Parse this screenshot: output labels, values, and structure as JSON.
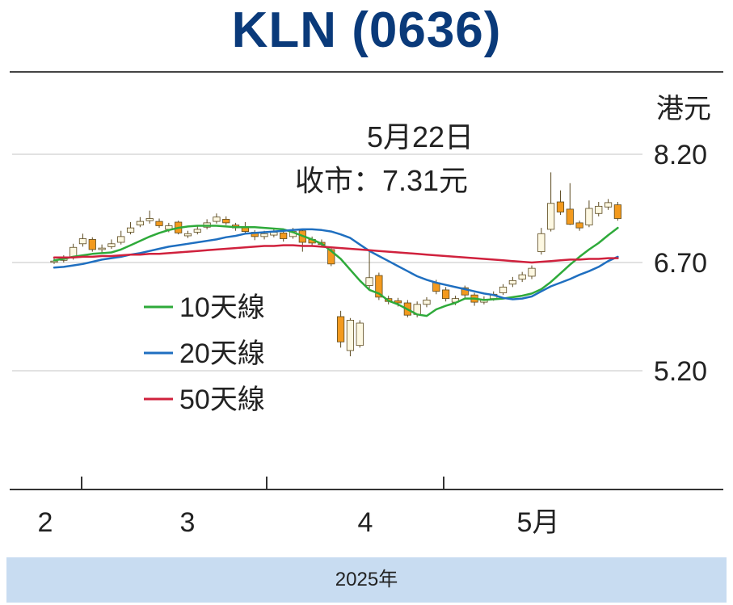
{
  "title": "KLN (0636)",
  "unit": "港元",
  "annotation": {
    "date": "5月22日",
    "close": "收市：7.31元"
  },
  "year": "2025年",
  "colors": {
    "title": "#0a3a7a",
    "ma10": "#2eaa3a",
    "ma20": "#1f6fc0",
    "ma50": "#d0213d",
    "down_candle": "#f39a1e",
    "up_candle": "#fdf8e2",
    "candle_edge": "#5c4a20",
    "band": "#c8dcf1"
  },
  "chart_data": {
    "type": "candlestick",
    "y_unit": "港元",
    "y_ticks": [
      {
        "value": 8.2,
        "label": "8.20"
      },
      {
        "value": 6.7,
        "label": "6.70"
      },
      {
        "value": 5.2,
        "label": "5.20"
      }
    ],
    "ylim": [
      3.5,
      9.4
    ],
    "x_ticks": [
      "2",
      "3",
      "4",
      "5月"
    ],
    "legend": [
      "10天線",
      "20天線",
      "50天線"
    ],
    "candles": [
      {
        "o": 6.72,
        "c": 6.72,
        "h": 6.76,
        "l": 6.68
      },
      {
        "o": 6.73,
        "c": 6.76,
        "h": 6.8,
        "l": 6.7
      },
      {
        "o": 6.78,
        "c": 6.91,
        "h": 6.96,
        "l": 6.74
      },
      {
        "o": 6.96,
        "c": 7.03,
        "h": 7.1,
        "l": 6.92
      },
      {
        "o": 7.02,
        "c": 6.88,
        "h": 7.05,
        "l": 6.85
      },
      {
        "o": 6.88,
        "c": 6.9,
        "h": 6.95,
        "l": 6.84
      },
      {
        "o": 6.92,
        "c": 6.96,
        "h": 7.02,
        "l": 6.89
      },
      {
        "o": 6.98,
        "c": 7.06,
        "h": 7.14,
        "l": 6.95
      },
      {
        "o": 7.12,
        "c": 7.18,
        "h": 7.26,
        "l": 7.09
      },
      {
        "o": 7.22,
        "c": 7.27,
        "h": 7.33,
        "l": 7.19
      },
      {
        "o": 7.28,
        "c": 7.31,
        "h": 7.42,
        "l": 7.24
      },
      {
        "o": 7.27,
        "c": 7.21,
        "h": 7.31,
        "l": 7.18
      },
      {
        "o": 7.16,
        "c": 7.21,
        "h": 7.25,
        "l": 7.12
      },
      {
        "o": 7.26,
        "c": 7.11,
        "h": 7.28,
        "l": 7.09
      },
      {
        "o": 7.07,
        "c": 7.1,
        "h": 7.14,
        "l": 7.04
      },
      {
        "o": 7.12,
        "c": 7.16,
        "h": 7.2,
        "l": 7.09
      },
      {
        "o": 7.19,
        "c": 7.25,
        "h": 7.3,
        "l": 7.16
      },
      {
        "o": 7.27,
        "c": 7.33,
        "h": 7.38,
        "l": 7.24
      },
      {
        "o": 7.3,
        "c": 7.25,
        "h": 7.34,
        "l": 7.22
      },
      {
        "o": 7.22,
        "c": 7.18,
        "h": 7.25,
        "l": 7.14
      },
      {
        "o": 7.2,
        "c": 7.13,
        "h": 7.26,
        "l": 7.1
      },
      {
        "o": 7.12,
        "c": 7.06,
        "h": 7.15,
        "l": 7.01
      },
      {
        "o": 7.06,
        "c": 7.1,
        "h": 7.14,
        "l": 7.02
      },
      {
        "o": 7.08,
        "c": 7.12,
        "h": 7.16,
        "l": 7.05
      },
      {
        "o": 7.11,
        "c": 7.03,
        "h": 7.14,
        "l": 6.99
      },
      {
        "o": 7.06,
        "c": 7.13,
        "h": 7.18,
        "l": 7.03
      },
      {
        "o": 7.14,
        "c": 6.98,
        "h": 7.17,
        "l": 6.85
      },
      {
        "o": 7.02,
        "c": 6.97,
        "h": 7.06,
        "l": 6.92
      },
      {
        "o": 6.98,
        "c": 6.95,
        "h": 7.02,
        "l": 6.91
      },
      {
        "o": 6.88,
        "c": 6.68,
        "h": 6.92,
        "l": 6.65
      },
      {
        "o": 5.95,
        "c": 5.6,
        "h": 6.03,
        "l": 5.52
      },
      {
        "o": 5.48,
        "c": 5.9,
        "h": 5.93,
        "l": 5.4
      },
      {
        "o": 5.55,
        "c": 5.86,
        "h": 5.9,
        "l": 5.52
      },
      {
        "o": 6.38,
        "c": 6.49,
        "h": 6.85,
        "l": 6.31
      },
      {
        "o": 6.52,
        "c": 6.22,
        "h": 6.56,
        "l": 6.18
      },
      {
        "o": 6.2,
        "c": 6.16,
        "h": 6.24,
        "l": 6.12
      },
      {
        "o": 6.17,
        "c": 6.14,
        "h": 6.21,
        "l": 6.09
      },
      {
        "o": 6.14,
        "c": 5.97,
        "h": 6.18,
        "l": 5.94
      },
      {
        "o": 5.98,
        "c": 6.12,
        "h": 6.16,
        "l": 5.94
      },
      {
        "o": 6.12,
        "c": 6.18,
        "h": 6.22,
        "l": 6.08
      },
      {
        "o": 6.42,
        "c": 6.3,
        "h": 6.46,
        "l": 6.26
      },
      {
        "o": 6.32,
        "c": 6.2,
        "h": 6.36,
        "l": 6.16
      },
      {
        "o": 6.15,
        "c": 6.2,
        "h": 6.24,
        "l": 6.11
      },
      {
        "o": 6.35,
        "c": 6.25,
        "h": 6.38,
        "l": 6.21
      },
      {
        "o": 6.25,
        "c": 6.15,
        "h": 6.28,
        "l": 6.1
      },
      {
        "o": 6.15,
        "c": 6.19,
        "h": 6.23,
        "l": 6.12
      },
      {
        "o": 6.2,
        "c": 6.26,
        "h": 6.3,
        "l": 6.17
      },
      {
        "o": 6.28,
        "c": 6.36,
        "h": 6.4,
        "l": 6.25
      },
      {
        "o": 6.4,
        "c": 6.45,
        "h": 6.5,
        "l": 6.36
      },
      {
        "o": 6.47,
        "c": 6.53,
        "h": 6.57,
        "l": 6.43
      },
      {
        "o": 6.51,
        "c": 6.62,
        "h": 6.66,
        "l": 6.47
      },
      {
        "o": 6.85,
        "c": 7.1,
        "h": 7.18,
        "l": 6.81
      },
      {
        "o": 7.16,
        "c": 7.52,
        "h": 7.95,
        "l": 7.13
      },
      {
        "o": 7.54,
        "c": 7.4,
        "h": 7.7,
        "l": 7.36
      },
      {
        "o": 7.44,
        "c": 7.23,
        "h": 7.8,
        "l": 7.22
      },
      {
        "o": 7.25,
        "c": 7.18,
        "h": 7.28,
        "l": 7.14
      },
      {
        "o": 7.22,
        "c": 7.45,
        "h": 7.56,
        "l": 7.19
      },
      {
        "o": 7.38,
        "c": 7.48,
        "h": 7.54,
        "l": 7.34
      },
      {
        "o": 7.47,
        "c": 7.53,
        "h": 7.58,
        "l": 7.43
      },
      {
        "o": 7.5,
        "c": 7.31,
        "h": 7.54,
        "l": 7.28
      }
    ],
    "series": [
      {
        "name": "10天線",
        "values": [
          6.73,
          6.75,
          6.78,
          6.8,
          6.82,
          6.83,
          6.84,
          6.88,
          6.94,
          7.0,
          7.06,
          7.11,
          7.15,
          7.18,
          7.2,
          7.21,
          7.21,
          7.21,
          7.2,
          7.19,
          7.19,
          7.19,
          7.18,
          7.17,
          7.16,
          7.12,
          7.07,
          7.02,
          6.96,
          6.86,
          6.75,
          6.6,
          6.45,
          6.32,
          6.27,
          6.17,
          6.12,
          6.05,
          5.98,
          5.96,
          6.05,
          6.1,
          6.14,
          6.2,
          6.2,
          6.18,
          6.19,
          6.2,
          6.22,
          6.24,
          6.27,
          6.33,
          6.43,
          6.55,
          6.67,
          6.78,
          6.88,
          6.97,
          7.08,
          7.18
        ]
      },
      {
        "name": "20天線",
        "values": [
          6.63,
          6.64,
          6.66,
          6.68,
          6.71,
          6.74,
          6.76,
          6.78,
          6.81,
          6.83,
          6.86,
          6.89,
          6.92,
          6.94,
          6.96,
          6.98,
          7.0,
          7.02,
          7.05,
          7.07,
          7.1,
          7.11,
          7.12,
          7.13,
          7.14,
          7.15,
          7.16,
          7.16,
          7.15,
          7.13,
          7.09,
          7.04,
          6.95,
          6.86,
          6.79,
          6.72,
          6.65,
          6.58,
          6.51,
          6.46,
          6.42,
          6.39,
          6.36,
          6.33,
          6.3,
          6.27,
          6.25,
          6.21,
          6.19,
          6.2,
          6.23,
          6.3,
          6.37,
          6.42,
          6.47,
          6.53,
          6.58,
          6.64,
          6.72,
          6.78
        ]
      },
      {
        "name": "50天線",
        "values": [
          6.77,
          6.77,
          6.77,
          6.78,
          6.78,
          6.79,
          6.79,
          6.8,
          6.81,
          6.81,
          6.82,
          6.82,
          6.83,
          6.84,
          6.85,
          6.86,
          6.87,
          6.88,
          6.89,
          6.9,
          6.91,
          6.92,
          6.93,
          6.93,
          6.94,
          6.94,
          6.93,
          6.93,
          6.92,
          6.91,
          6.9,
          6.89,
          6.88,
          6.87,
          6.86,
          6.85,
          6.84,
          6.83,
          6.82,
          6.81,
          6.8,
          6.79,
          6.78,
          6.77,
          6.76,
          6.75,
          6.74,
          6.73,
          6.72,
          6.71,
          6.7,
          6.71,
          6.72,
          6.73,
          6.74,
          6.74,
          6.75,
          6.75,
          6.76,
          6.76
        ]
      }
    ]
  }
}
